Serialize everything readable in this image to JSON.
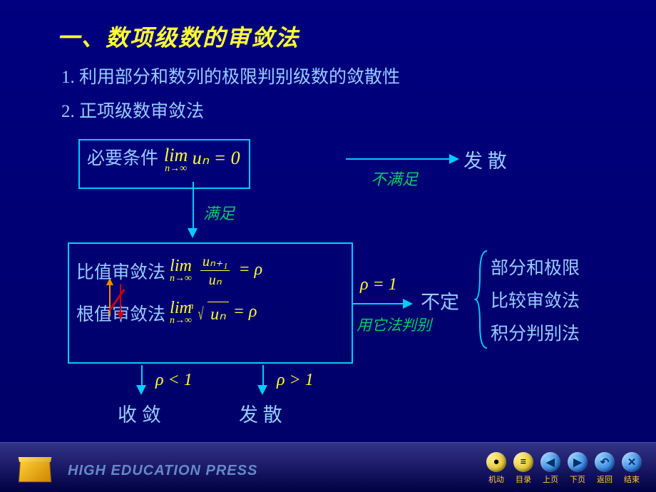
{
  "title": "一、数项级数的审敛法",
  "item1": "1. 利用部分和数列的极限判别级数的敛散性",
  "item2": "2. 正项级数审敛法",
  "box1": {
    "label": "必要条件",
    "lim": "lim",
    "expr": "uₙ = 0",
    "sub": "n→∞"
  },
  "arrow1": {
    "text": "不满足",
    "result": "发 散"
  },
  "arrow2": {
    "text": "满足"
  },
  "box2": {
    "r1_label": "比值审敛法",
    "r2_label": "根值审敛法",
    "lim": "lim",
    "sub": "n→∞",
    "frac_top": "uₙ₊₁",
    "frac_bot": "uₙ",
    "eq_rho": " = ρ",
    "root_n": "n",
    "root_expr": "uₙ"
  },
  "rho_eq1": "ρ = 1",
  "buding": "不定",
  "yongta": "用它法判别",
  "methods": {
    "m1": "部分和极限",
    "m2": "比较审敛法",
    "m3": "积分判别法"
  },
  "rho_lt": "ρ < 1",
  "shoulian": "收 敛",
  "rho_gt": "ρ > 1",
  "fasan": "发 散",
  "footer": {
    "press": "HIGH EDUCATION PRESS",
    "nav": [
      {
        "label": "机动",
        "color": "yellow",
        "glyph": "●"
      },
      {
        "label": "目录",
        "color": "yellow",
        "glyph": "≡"
      },
      {
        "label": "上页",
        "color": "blue",
        "glyph": "◀"
      },
      {
        "label": "下页",
        "color": "blue",
        "glyph": "▶"
      },
      {
        "label": "返回",
        "color": "blue",
        "glyph": "↶"
      },
      {
        "label": "结束",
        "color": "blue",
        "glyph": "✕"
      }
    ]
  },
  "colors": {
    "bg": "#000080",
    "accent": "#00ccff",
    "text": "#99ccff",
    "math": "#ffff33",
    "green": "#00cc66"
  }
}
